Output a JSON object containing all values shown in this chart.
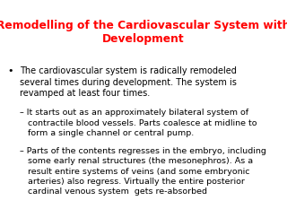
{
  "background_color": "#ffffff",
  "title_line1": "Remodelling of the Cardiovascular System with",
  "title_line2": "Development",
  "title_color": "#ff0000",
  "title_fontsize": 8.8,
  "body_color": "#000000",
  "body_fontsize": 7.0,
  "sub_fontsize": 6.8,
  "bullet_text": "The cardiovascular system is radically remodeled\nseveral times during development. The system is\nrevamped at least four times.",
  "sub1_text": "– It starts out as an approximately bilateral system of\n   contractile blood vessels. Parts coalesce at midline to\n   form a single channel or central pump.",
  "sub2_text": "– Parts of the contents regresses in the embryo, including\n   some early renal structures (the mesonephros). As a\n   result entire systems of veins (and some embryonic\n   arteries) also regress. Virtually the entire posterior\n   cardinal venous system  gets re-absorbed"
}
